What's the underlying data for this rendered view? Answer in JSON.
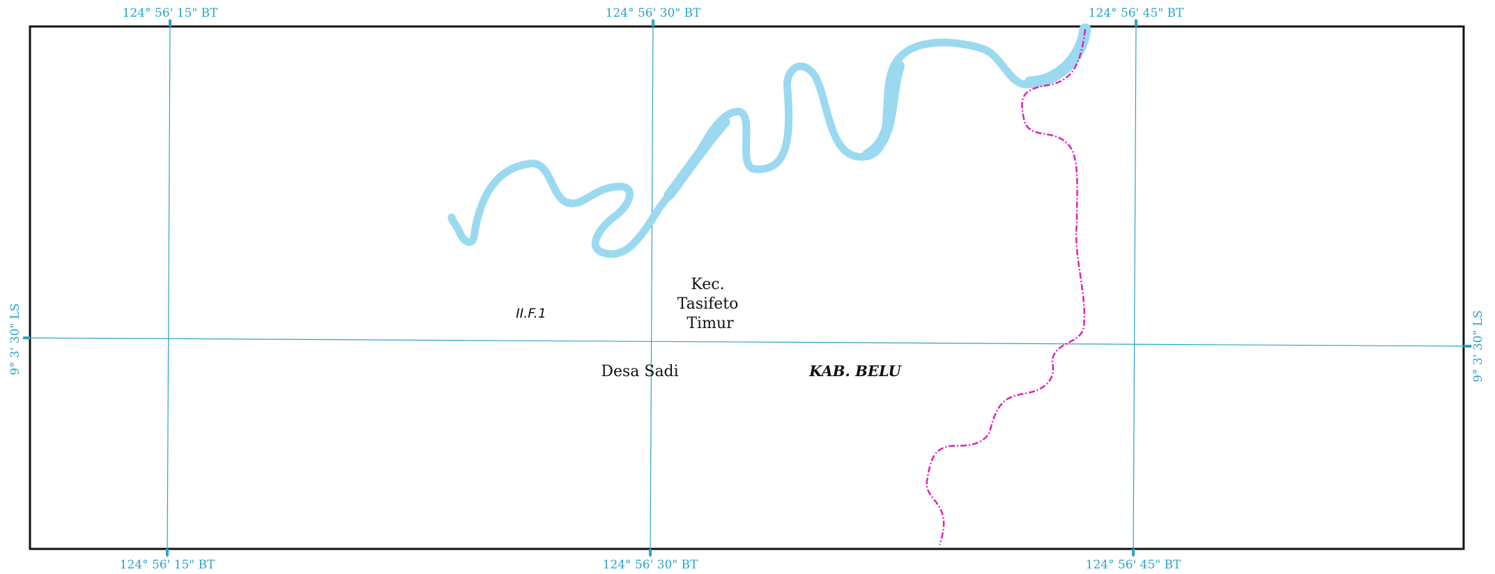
{
  "map": {
    "grid_labels": {
      "top": [
        "124° 56' 15\" BT",
        "124° 56' 30\" BT",
        "124° 56' 45\" BT"
      ],
      "bottom": [
        "124° 56' 15\" BT",
        "124° 56' 30\" BT",
        "124° 56' 45\" BT"
      ],
      "left": "9° 3' 30\" LS",
      "right": "9° 3' 30\" LS"
    },
    "labels": {
      "code": "II.F.1",
      "kecamatan": [
        "Kec.",
        "Tasifeto",
        "Timur"
      ],
      "desa": "Desa Sadi",
      "kabupaten": "KAB. BELU"
    },
    "colors": {
      "grid": "#2aa3c9",
      "river": "#9bd9f1",
      "boundary": "#e020b8",
      "frame": "#111111"
    }
  }
}
